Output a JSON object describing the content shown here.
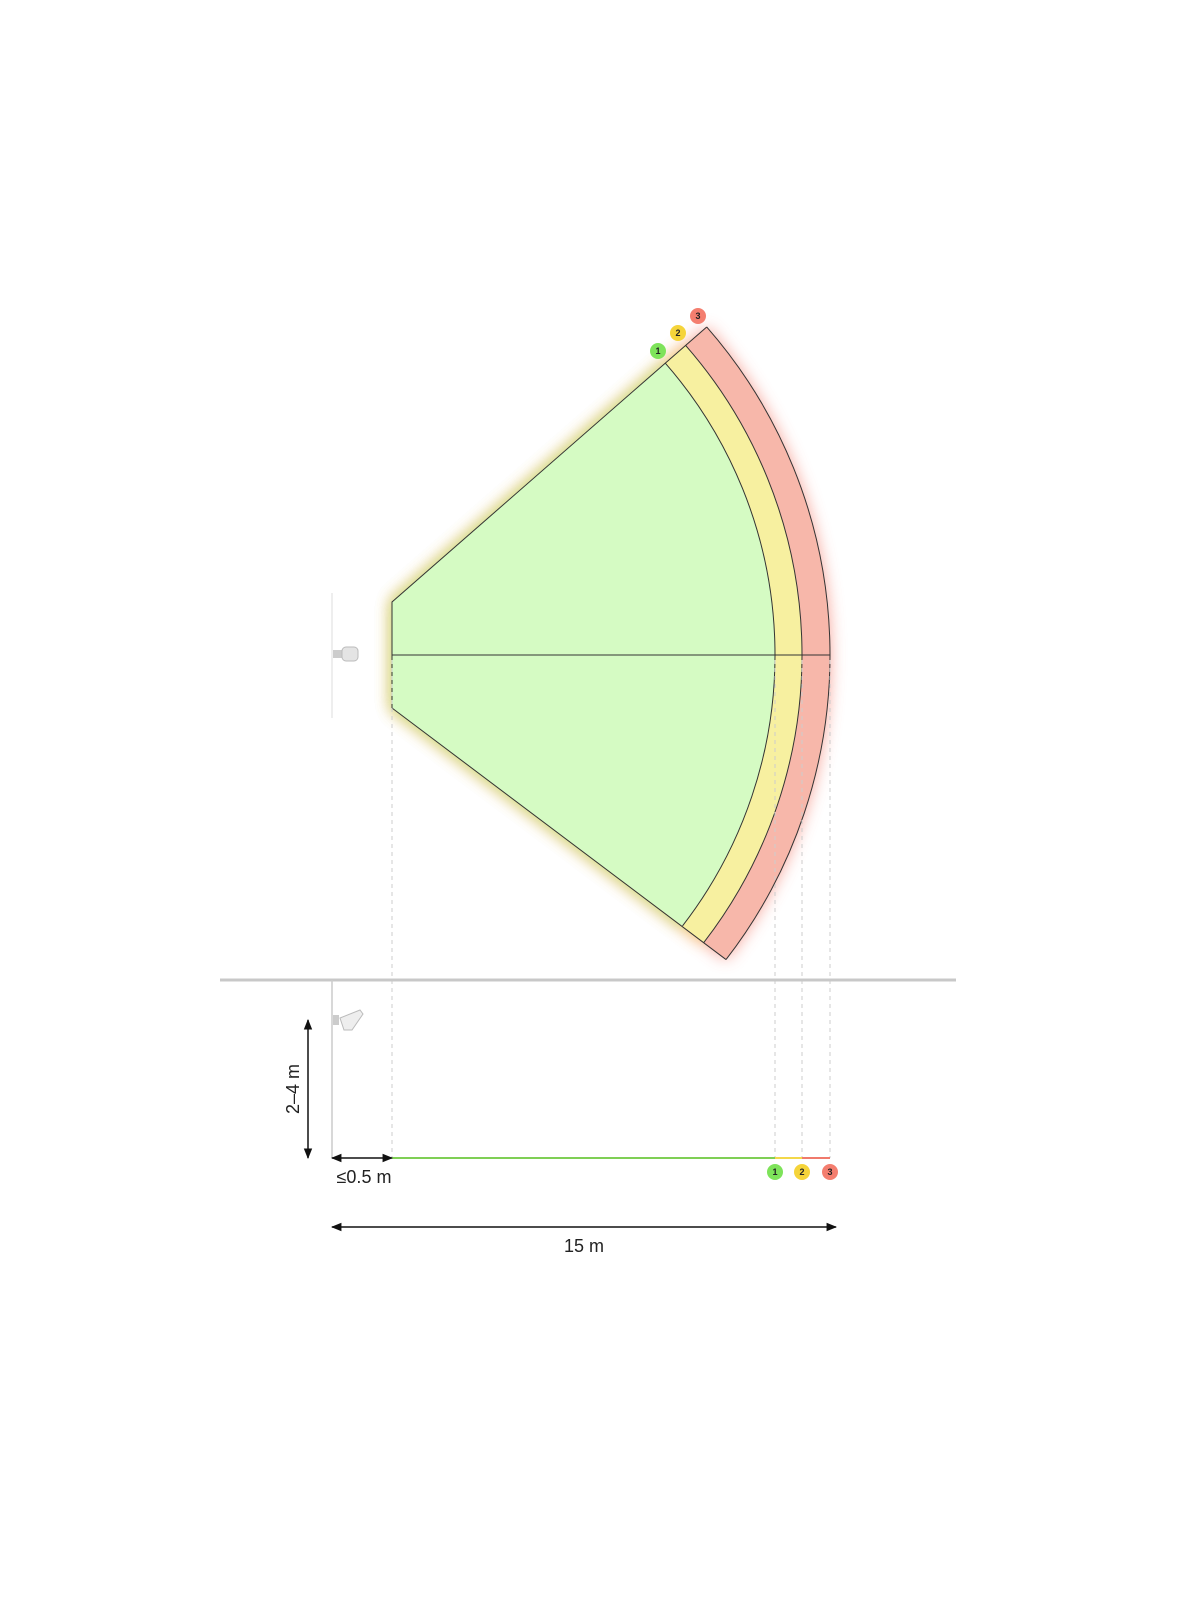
{
  "zones": [
    {
      "label": "1"
    },
    {
      "label": "2"
    },
    {
      "label": "3"
    }
  ],
  "dimensions": {
    "height": "2–4 m",
    "offset": "≤0.5 m",
    "range": "15 m"
  }
}
